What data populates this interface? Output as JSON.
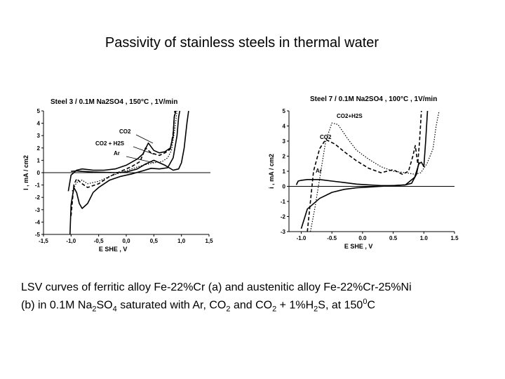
{
  "slide": {
    "title": "Passivity of stainless steels in thermal water"
  },
  "caption": {
    "line1": "LSV curves of ferritic alloy Fe-22%Cr (a) and austenitic alloy  Fe-22%Cr-25%Ni",
    "line2_a": "(b) in 0.1M Na",
    "line2_b": "2",
    "line2_c": "SO",
    "line2_d": "4",
    "line2_e": " saturated with Ar, CO",
    "line2_f": "2",
    "line2_g": " and CO",
    "line2_h": "2",
    "line2_i": " + 1%H",
    "line2_j": "2",
    "line2_k": "S, at 150",
    "line2_l": "0",
    "line2_m": "C"
  },
  "chart_data": [
    {
      "type": "line",
      "title": "Steel 3 / 0.1M Na2SO4 , 150°C , 1V/min",
      "xlabel": "E SHE , V",
      "ylabel": "I , mA / cm2",
      "xlim": [
        -1.5,
        1.5
      ],
      "ylim": [
        -5,
        5
      ],
      "xticks": [
        "-1,5",
        "-1,0",
        "-0,5",
        "0,0",
        "0,5",
        "1,0",
        "1,5"
      ],
      "yticks": [
        "5",
        "4",
        "3",
        "2",
        "1",
        "0",
        "-1",
        "-2",
        "-3",
        "-4",
        "-5"
      ],
      "annotations": [
        "CO2",
        "CO2 + H2S",
        "Ar"
      ],
      "series": [
        {
          "style": "solid",
          "x": [
            -1.02,
            -1.0,
            -0.95,
            -0.9,
            -0.85,
            -0.8,
            -0.7,
            -0.6,
            -0.5,
            -0.3,
            -0.1,
            0.1,
            0.3,
            0.45,
            0.6,
            0.75,
            0.85,
            0.92,
            0.95,
            0.97
          ],
          "y": [
            -5,
            -2.6,
            -1.2,
            -1.6,
            -2.5,
            -2.9,
            -2.5,
            -1.6,
            -1.2,
            -0.6,
            -0.3,
            -0.1,
            0.15,
            0.35,
            0.3,
            0.4,
            1.2,
            3,
            4.5,
            5
          ]
        },
        {
          "style": "solid",
          "x": [
            -1.0,
            -0.9,
            -0.8,
            -0.6,
            -0.4,
            -0.2,
            0.0,
            0.2,
            0.35,
            0.5,
            0.7,
            0.85,
            0.95,
            1.0,
            1.05,
            1.1,
            1.13
          ],
          "y": [
            0.1,
            0.15,
            0.1,
            0.05,
            0.02,
            0.0,
            0.05,
            0.3,
            0.7,
            1.0,
            0.6,
            0.2,
            0.3,
            0.8,
            2,
            4,
            5
          ]
        },
        {
          "style": "solid",
          "x": [
            -1.05,
            -1.0,
            -0.9,
            -0.8,
            -0.6,
            -0.4,
            -0.2,
            0.0,
            0.2,
            0.3,
            0.4,
            0.5,
            0.6,
            0.7,
            0.8,
            0.85,
            0.87,
            0.9
          ],
          "y": [
            -1.5,
            -0.2,
            0.2,
            0.3,
            0.2,
            0.2,
            0.3,
            0.6,
            1.1,
            1.5,
            2.4,
            1.8,
            1.6,
            1.7,
            2.0,
            3.0,
            4.5,
            5
          ]
        },
        {
          "style": "dashed",
          "x": [
            -1.0,
            -0.95,
            -0.9,
            -0.8,
            -0.7,
            -0.5,
            -0.3,
            -0.1,
            0.1,
            0.25,
            0.35,
            0.45,
            0.6,
            0.7,
            0.8,
            0.85,
            0.88
          ],
          "y": [
            -3.5,
            -1.0,
            -0.5,
            -0.9,
            -1.2,
            -0.9,
            -0.3,
            0.1,
            0.5,
            0.9,
            2.0,
            1.6,
            1.4,
            1.6,
            1.9,
            3.2,
            5
          ]
        },
        {
          "style": "dotted",
          "x": [
            -0.98,
            -0.9,
            -0.8,
            -0.7,
            -0.5,
            -0.3,
            -0.1,
            0.1,
            0.3,
            0.5,
            0.65,
            0.75,
            0.82,
            0.88,
            0.92
          ],
          "y": [
            -1.5,
            -0.8,
            -0.6,
            -0.9,
            -0.7,
            -0.3,
            0.0,
            0.3,
            0.6,
            0.8,
            0.9,
            1.2,
            1.8,
            3.5,
            5
          ]
        }
      ]
    },
    {
      "type": "line",
      "title": "Steel 7 / 0.1M Na2SO4 , 100°C , 1V/min",
      "xlabel": "E SHE , V",
      "ylabel": "i , mA / cm2",
      "xlim": [
        -1.2,
        1.5
      ],
      "ylim": [
        -3,
        5
      ],
      "xticks": [
        "-1.0",
        "-0.5",
        "0.0",
        "0.5",
        "1.0",
        "1.5"
      ],
      "yticks": [
        "5",
        "4",
        "3",
        "2",
        "1",
        "0",
        "-1",
        "-2",
        "-3"
      ],
      "annotations": [
        "CO2+H2S",
        "CO2",
        "Ar"
      ],
      "series": [
        {
          "style": "solid",
          "x": [
            -1.08,
            -1.05,
            -1.0,
            -0.9,
            -0.7,
            -0.5,
            -0.3,
            -0.1,
            0.1,
            0.3,
            0.5,
            0.7,
            0.85,
            0.92,
            0.96,
            1.0,
            1.03,
            1.06
          ],
          "y": [
            0.1,
            0.35,
            0.4,
            0.45,
            0.45,
            0.35,
            0.25,
            0.15,
            0.1,
            0.05,
            0.05,
            0.1,
            0.6,
            1.5,
            1.6,
            1.3,
            3,
            5
          ]
        },
        {
          "style": "solid",
          "x": [
            -1.0,
            -0.9,
            -0.7,
            -0.5,
            -0.3,
            -0.1,
            0.1,
            0.3,
            0.5,
            0.7,
            0.8,
            0.88,
            0.92
          ],
          "y": [
            -2.8,
            -1.5,
            -0.8,
            -0.4,
            -0.2,
            -0.1,
            -0.05,
            0.0,
            0.05,
            0.1,
            0.2,
            0.8,
            1.6
          ]
        },
        {
          "style": "dashed",
          "x": [
            -0.9,
            -0.85,
            -0.8,
            -0.7,
            -0.6,
            -0.45,
            -0.3,
            -0.1,
            0.1,
            0.3,
            0.5,
            0.65,
            0.75,
            0.82,
            0.86,
            0.9,
            0.93,
            0.96
          ],
          "y": [
            -3,
            -1.0,
            1.0,
            2.5,
            3.1,
            2.8,
            2.3,
            1.7,
            1.2,
            0.9,
            1.1,
            0.8,
            1.0,
            2.0,
            2.7,
            1.5,
            3,
            5
          ]
        },
        {
          "style": "dotted",
          "x": [
            -0.85,
            -0.78,
            -0.7,
            -0.6,
            -0.5,
            -0.4,
            -0.25,
            -0.1,
            0.1,
            0.3,
            0.5,
            0.7,
            0.85,
            0.95,
            1.05,
            1.15,
            1.2,
            1.25
          ],
          "y": [
            -3,
            -1.5,
            0.5,
            3.0,
            4.2,
            4.1,
            3.2,
            2.4,
            1.8,
            1.3,
            1.0,
            0.9,
            0.8,
            0.9,
            1.5,
            2.5,
            4,
            5
          ]
        }
      ]
    }
  ]
}
